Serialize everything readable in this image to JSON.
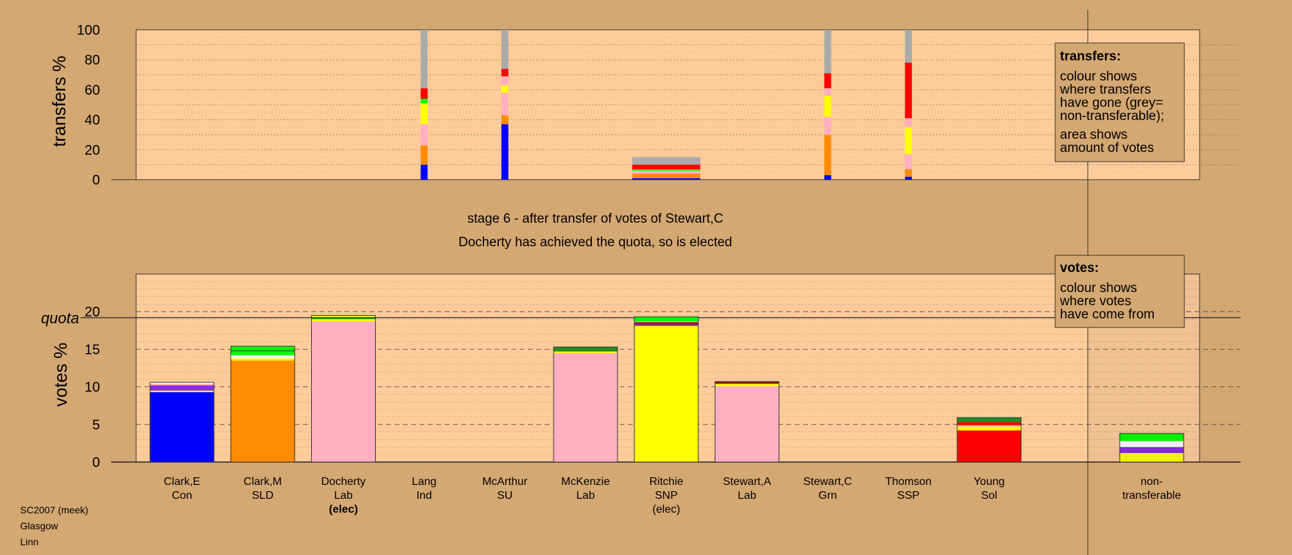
{
  "colors": {
    "background": "#D4A872",
    "plot_bg": "#FFCC99",
    "shade": "#C9A07A",
    "party": {
      "Con": "#0000FF",
      "SLD": "#FF8C00",
      "Lab": "#FFB0C0",
      "Ind": "#7B7B7B",
      "SU": "#7CFC00",
      "SNP": "#FFFF00",
      "Grn": "#228B22",
      "SSP": "#8B1A1A",
      "Sol": "#FF0000",
      "Other": "#8A2BE2",
      "NonTransferable": "#AAAAAA",
      "Green": "#00FF00",
      "White": "#FFFFFF"
    }
  },
  "stage": {
    "title": "stage 6 - after transfer of votes of Stewart,C",
    "subtitle": "Docherty has achieved the quota, so is elected"
  },
  "legend_transfers": {
    "title": "transfers:",
    "lines1": [
      "colour shows",
      "where transfers",
      "have gone (grey=",
      "non-transferable);"
    ],
    "lines2": [
      "area shows",
      "amount of votes"
    ]
  },
  "legend_votes": {
    "title": "votes:",
    "lines": [
      "colour shows",
      "where votes",
      "have come from"
    ]
  },
  "footer": [
    "SC2007 (meek)",
    "Glasgow",
    "Linn"
  ],
  "chart_data": [
    {
      "type": "bar",
      "name": "transfers",
      "ylabel": "transfers %",
      "ylim": [
        0,
        100
      ],
      "yticks": [
        0,
        20,
        40,
        60,
        80,
        100
      ],
      "grid": "dotted",
      "bars": [
        {
          "index": 3,
          "width": "narrow",
          "segments": [
            {
              "c": "Con",
              "v": 10
            },
            {
              "c": "SLD",
              "v": 13
            },
            {
              "c": "Lab",
              "v": 14
            },
            {
              "c": "SNP",
              "v": 14
            },
            {
              "c": "Green",
              "v": 3
            },
            {
              "c": "Sol",
              "v": 7
            },
            {
              "c": "NonTransferable",
              "v": 39
            }
          ]
        },
        {
          "index": 4,
          "width": "narrow",
          "segments": [
            {
              "c": "Con",
              "v": 37
            },
            {
              "c": "SLD",
              "v": 6
            },
            {
              "c": "Lab",
              "v": 15
            },
            {
              "c": "SNP",
              "v": 5
            },
            {
              "c": "Lab",
              "v": 6
            },
            {
              "c": "Sol",
              "v": 5
            },
            {
              "c": "NonTransferable",
              "v": 26
            }
          ]
        },
        {
          "index": 6,
          "width": "wide",
          "segments": [
            {
              "c": "Con",
              "v": 1
            },
            {
              "c": "SLD",
              "v": 3
            },
            {
              "c": "Lab",
              "v": 2
            },
            {
              "c": "Green",
              "v": 1
            },
            {
              "c": "Sol",
              "v": 3
            },
            {
              "c": "NonTransferable",
              "v": 5
            }
          ]
        },
        {
          "index": 8,
          "width": "narrow",
          "segments": [
            {
              "c": "Con",
              "v": 3
            },
            {
              "c": "SLD",
              "v": 27
            },
            {
              "c": "Lab",
              "v": 12
            },
            {
              "c": "SNP",
              "v": 14
            },
            {
              "c": "Lab",
              "v": 5
            },
            {
              "c": "Sol",
              "v": 10
            },
            {
              "c": "NonTransferable",
              "v": 29
            }
          ]
        },
        {
          "index": 9,
          "width": "narrow",
          "segments": [
            {
              "c": "Con",
              "v": 2
            },
            {
              "c": "SLD",
              "v": 5
            },
            {
              "c": "Lab",
              "v": 10
            },
            {
              "c": "SNP",
              "v": 18
            },
            {
              "c": "Lab",
              "v": 6
            },
            {
              "c": "Sol",
              "v": 37
            },
            {
              "c": "NonTransferable",
              "v": 22
            }
          ]
        }
      ]
    },
    {
      "type": "bar",
      "name": "votes",
      "ylabel": "votes %",
      "ylim": [
        0,
        25
      ],
      "yticks": [
        0,
        5,
        10,
        15,
        20
      ],
      "quota": 19.2,
      "quota_label": "quota",
      "grid": "dashed",
      "categories": [
        {
          "name": "Clark,E",
          "party": "Con",
          "status": ""
        },
        {
          "name": "Clark,M",
          "party": "SLD",
          "status": ""
        },
        {
          "name": "Docherty",
          "party": "Lab",
          "status": "(elec)",
          "status_bold": true
        },
        {
          "name": "Lang",
          "party": "Ind",
          "status": ""
        },
        {
          "name": "McArthur",
          "party": "SU",
          "status": ""
        },
        {
          "name": "McKenzie",
          "party": "Lab",
          "status": ""
        },
        {
          "name": "Ritchie",
          "party": "SNP",
          "status": "(elec)",
          "status_bold": false
        },
        {
          "name": "Stewart,A",
          "party": "Lab",
          "status": ""
        },
        {
          "name": "Stewart,C",
          "party": "Grn",
          "status": ""
        },
        {
          "name": "Thomson",
          "party": "SSP",
          "status": ""
        },
        {
          "name": "Young",
          "party": "Sol",
          "status": ""
        },
        {
          "name": "non-\ntransferable",
          "party": "",
          "status": ""
        }
      ],
      "bars": [
        {
          "index": 0,
          "segments": [
            {
              "c": "Con",
              "v": 9.3
            },
            {
              "c": "SNP",
              "v": 0.2
            },
            {
              "c": "Other",
              "v": 0.7
            },
            {
              "c": "Lab",
              "v": 0.2
            },
            {
              "c": "White",
              "v": 0.2
            }
          ]
        },
        {
          "index": 1,
          "segments": [
            {
              "c": "SLD",
              "v": 13.5
            },
            {
              "c": "SNP",
              "v": 0.3
            },
            {
              "c": "White",
              "v": 0.4
            },
            {
              "c": "Green",
              "v": 0.5
            },
            {
              "c": "Grn",
              "v": 0.2
            },
            {
              "c": "Green",
              "v": 0.5
            }
          ]
        },
        {
          "index": 2,
          "segments": [
            {
              "c": "Lab",
              "v": 18.7
            },
            {
              "c": "SNP",
              "v": 0.3
            },
            {
              "c": "Grn",
              "v": 0.3
            },
            {
              "c": "SNP",
              "v": 0.2
            }
          ]
        },
        {
          "index": 5,
          "segments": [
            {
              "c": "Lab",
              "v": 14.5
            },
            {
              "c": "SNP",
              "v": 0.2
            },
            {
              "c": "Grn",
              "v": 0.6
            }
          ]
        },
        {
          "index": 6,
          "segments": [
            {
              "c": "SNP",
              "v": 18.1
            },
            {
              "c": "Other",
              "v": 0.2
            },
            {
              "c": "SSP",
              "v": 0.3
            },
            {
              "c": "Lab",
              "v": 0.1
            },
            {
              "c": "Green",
              "v": 0.6
            }
          ]
        },
        {
          "index": 7,
          "segments": [
            {
              "c": "Lab",
              "v": 10.1
            },
            {
              "c": "SNP",
              "v": 0.3
            },
            {
              "c": "SSP",
              "v": 0.3
            }
          ]
        },
        {
          "index": 10,
          "segments": [
            {
              "c": "Sol",
              "v": 4.2
            },
            {
              "c": "SNP",
              "v": 0.5
            },
            {
              "c": "Lab",
              "v": 0.2
            },
            {
              "c": "Sol",
              "v": 0.4
            },
            {
              "c": "Grn",
              "v": 0.6
            }
          ]
        },
        {
          "index": 11,
          "segments": [
            {
              "c": "SNP",
              "v": 1.2
            },
            {
              "c": "Other",
              "v": 0.8
            },
            {
              "c": "White",
              "v": 0.8
            },
            {
              "c": "Green",
              "v": 1.0
            }
          ]
        }
      ]
    }
  ]
}
